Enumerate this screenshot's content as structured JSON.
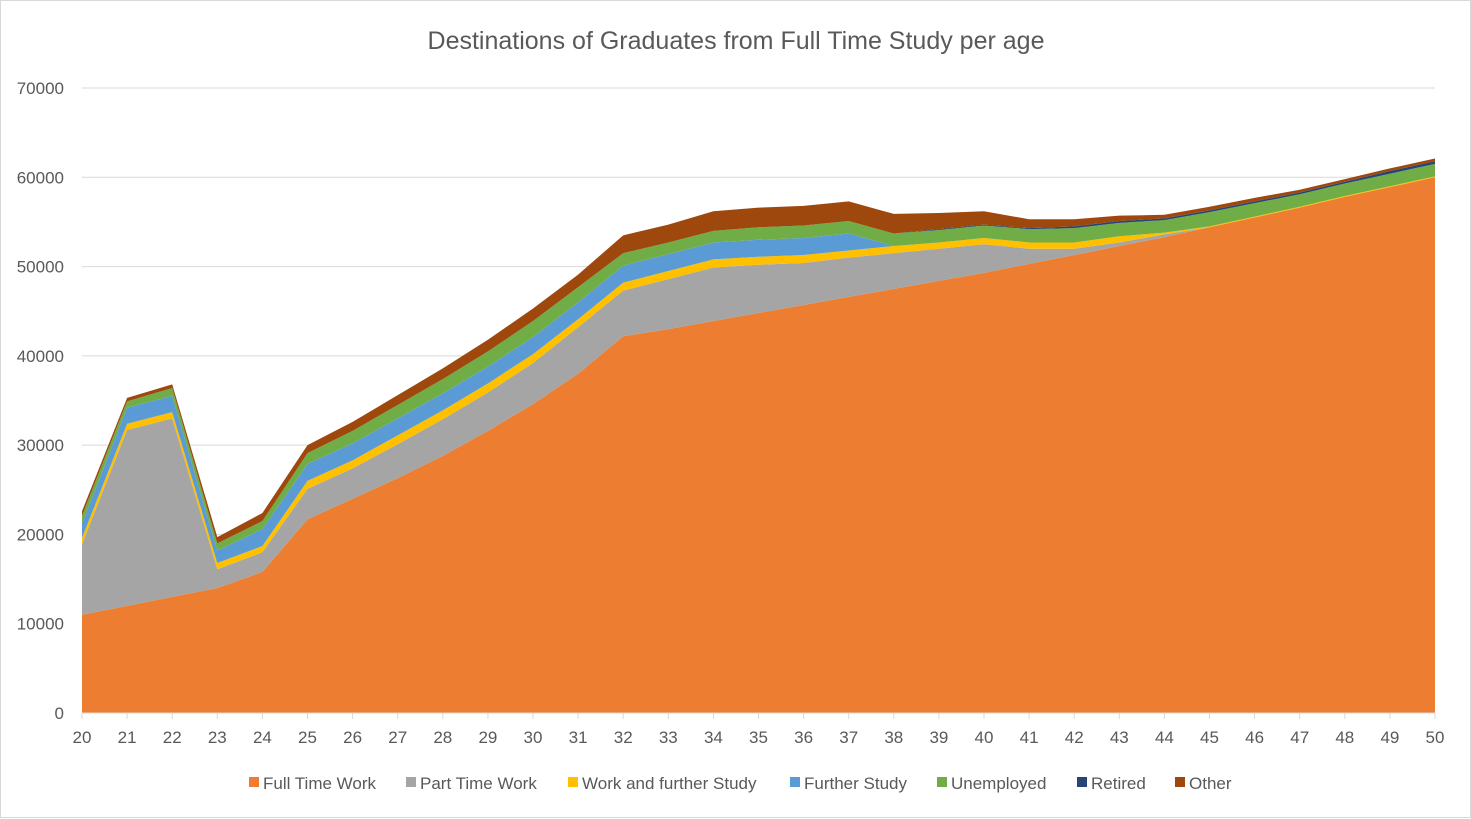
{
  "chart_data": {
    "type": "area",
    "stacked": true,
    "title": "Destinations of Graduates from Full Time Study per age",
    "xlabel": "",
    "ylabel": "",
    "x": [
      20,
      21,
      22,
      23,
      24,
      25,
      26,
      27,
      28,
      29,
      30,
      31,
      32,
      33,
      34,
      35,
      36,
      37,
      38,
      39,
      40,
      41,
      42,
      43,
      44,
      45,
      46,
      47,
      48,
      49,
      50
    ],
    "ylim": [
      0,
      70000
    ],
    "yticks": [
      0,
      10000,
      20000,
      30000,
      40000,
      50000,
      60000,
      70000
    ],
    "ytick_labels": [
      "0",
      "10000",
      "20000",
      "30000",
      "40000",
      "50000",
      "60000",
      "70000"
    ],
    "grid": true,
    "legend_position": "bottom",
    "series": [
      {
        "name": "Full Time Work",
        "color": "#ed7d31",
        "values": [
          11000,
          12000,
          13000,
          14000,
          15800,
          21700,
          24000,
          26300,
          28800,
          31600,
          34600,
          38000,
          42200,
          43000,
          43900,
          44800,
          45700,
          46600,
          47500,
          48400,
          49300,
          50300,
          51300,
          52300,
          53300,
          54400,
          55500,
          56600,
          57800,
          58900,
          60000
        ]
      },
      {
        "name": "Part Time Work",
        "color": "#a5a5a5",
        "values": [
          7900,
          19700,
          20000,
          2100,
          2200,
          3400,
          3400,
          3800,
          4100,
          4300,
          4600,
          5200,
          5100,
          5600,
          6000,
          5400,
          4700,
          4400,
          4000,
          3600,
          3200,
          1700,
          700,
          400,
          300,
          0,
          0,
          0,
          0,
          0,
          0
        ]
      },
      {
        "name": "Work and further Study",
        "color": "#ffc000",
        "values": [
          700,
          700,
          700,
          700,
          700,
          900,
          900,
          1000,
          1000,
          1000,
          1000,
          900,
          900,
          900,
          900,
          900,
          900,
          800,
          800,
          700,
          700,
          700,
          700,
          700,
          200,
          100,
          100,
          100,
          100,
          100,
          100
        ]
      },
      {
        "name": "Further Study",
        "color": "#5b9bd5",
        "values": [
          1600,
          1800,
          1800,
          1400,
          1900,
          1900,
          1900,
          1900,
          1900,
          1900,
          1900,
          1900,
          1900,
          1900,
          1900,
          1900,
          1900,
          1900,
          0,
          0,
          0,
          0,
          0,
          0,
          0,
          0,
          0,
          0,
          0,
          0,
          0
        ]
      },
      {
        "name": "Unemployed",
        "color": "#70ad47",
        "values": [
          900,
          700,
          900,
          800,
          900,
          1200,
          1400,
          1500,
          1600,
          1700,
          1800,
          1700,
          1400,
          1300,
          1300,
          1400,
          1400,
          1400,
          1400,
          1400,
          1400,
          1500,
          1600,
          1500,
          1400,
          1600,
          1500,
          1400,
          1400,
          1400,
          1400
        ]
      },
      {
        "name": "Retired",
        "color": "#264478",
        "values": [
          0,
          0,
          0,
          0,
          0,
          0,
          0,
          0,
          0,
          0,
          0,
          0,
          0,
          0,
          0,
          0,
          0,
          0,
          0,
          100,
          100,
          100,
          200,
          200,
          200,
          200,
          200,
          200,
          200,
          300,
          300
        ]
      },
      {
        "name": "Other",
        "color": "#9e480e",
        "values": [
          500,
          400,
          400,
          700,
          900,
          900,
          1000,
          1100,
          1200,
          1300,
          1400,
          1400,
          2000,
          2000,
          2200,
          2200,
          2200,
          2200,
          2200,
          1800,
          1500,
          1000,
          800,
          600,
          400,
          400,
          400,
          300,
          300,
          300,
          300
        ]
      }
    ]
  }
}
